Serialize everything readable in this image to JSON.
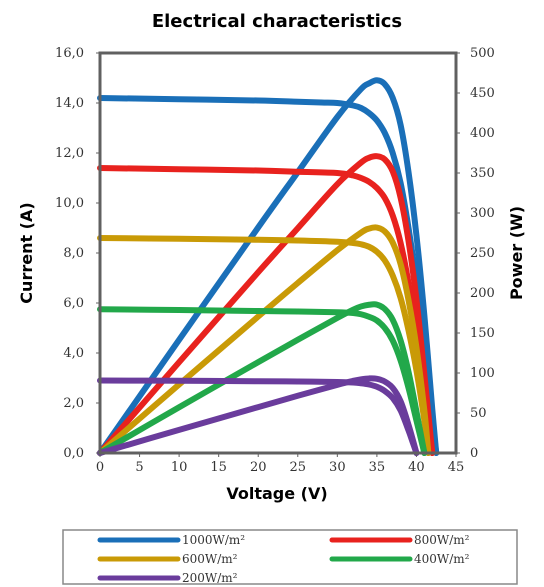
{
  "chart_data": {
    "type": "line",
    "title": "Electrical characteristics",
    "xlabel": "Voltage (V)",
    "ylabel_left": "Current (A)",
    "ylabel_right": "Power (W)",
    "xlim": [
      0,
      45
    ],
    "ylim_left": [
      0,
      16
    ],
    "ylim_right": [
      0,
      500
    ],
    "x_ticks": [
      "0",
      "5",
      "10",
      "15",
      "20",
      "25",
      "30",
      "35",
      "40",
      "45"
    ],
    "y_left_ticks": [
      "0,0",
      "2,0",
      "4,0",
      "6,0",
      "8,0",
      "10,0",
      "12,0",
      "14,0",
      "16,0"
    ],
    "y_right_ticks": [
      "0",
      "50",
      "100",
      "150",
      "200",
      "250",
      "300",
      "350",
      "400",
      "450",
      "500"
    ],
    "grid": false,
    "legend_position": "bottom",
    "series": [
      {
        "name": "1000W/m²",
        "color": "#1a6fb8",
        "iv_curve": {
          "axis": "left",
          "x": [
            0,
            10,
            20,
            25,
            28,
            30,
            32,
            33,
            34,
            35,
            36,
            37,
            38,
            39,
            40,
            41,
            42,
            42.5
          ],
          "y": [
            14.2,
            14.15,
            14.1,
            14.05,
            14.02,
            14.0,
            13.9,
            13.8,
            13.6,
            13.3,
            12.8,
            12.0,
            10.8,
            9.0,
            6.8,
            4.2,
            1.3,
            0
          ]
        },
        "power_curve": {
          "axis": "right",
          "x": [
            0,
            10,
            20,
            25,
            30,
            33,
            34,
            35,
            36,
            37,
            38,
            39,
            40,
            41,
            42,
            42.5
          ],
          "y": [
            0,
            141.5,
            282,
            351,
            420,
            455,
            462,
            466,
            461,
            444,
            410,
            351,
            272,
            172,
            55,
            0
          ]
        }
      },
      {
        "name": "800W/m²",
        "color": "#e8221e",
        "iv_curve": {
          "axis": "left",
          "x": [
            0,
            10,
            20,
            25,
            30,
            32,
            33,
            34,
            35,
            36,
            37,
            38,
            39,
            40,
            41,
            42
          ],
          "y": [
            11.4,
            11.35,
            11.3,
            11.25,
            11.2,
            11.1,
            11.0,
            10.85,
            10.6,
            10.2,
            9.5,
            8.4,
            6.8,
            4.8,
            2.4,
            0
          ]
        },
        "power_curve": {
          "axis": "right",
          "x": [
            0,
            10,
            20,
            25,
            30,
            33,
            34,
            35,
            36,
            37,
            38,
            39,
            40,
            41,
            42
          ],
          "y": [
            0,
            113.5,
            226,
            281,
            336,
            363,
            369,
            371,
            367,
            352,
            319,
            265,
            192,
            98,
            0
          ]
        }
      },
      {
        "name": "600W/m²",
        "color": "#c99a06",
        "iv_curve": {
          "axis": "left",
          "x": [
            0,
            10,
            20,
            25,
            30,
            32,
            33,
            34,
            35,
            36,
            37,
            38,
            39,
            40,
            41,
            41.5
          ],
          "y": [
            8.6,
            8.57,
            8.53,
            8.5,
            8.45,
            8.4,
            8.35,
            8.25,
            8.05,
            7.7,
            7.1,
            6.2,
            4.9,
            3.3,
            1.3,
            0
          ]
        },
        "power_curve": {
          "axis": "right",
          "x": [
            0,
            10,
            20,
            25,
            30,
            33,
            34,
            35,
            36,
            37,
            38,
            39,
            40,
            41,
            41.5
          ],
          "y": [
            0,
            85.7,
            170.6,
            212.5,
            253.5,
            275.5,
            280.5,
            281.8,
            277,
            263,
            236,
            191,
            132,
            53,
            0
          ]
        }
      },
      {
        "name": "400W/m²",
        "color": "#22a84a",
        "iv_curve": {
          "axis": "left",
          "x": [
            0,
            10,
            20,
            25,
            30,
            32,
            33,
            34,
            35,
            36,
            37,
            38,
            39,
            40,
            41
          ],
          "y": [
            5.75,
            5.72,
            5.68,
            5.66,
            5.63,
            5.6,
            5.55,
            5.45,
            5.3,
            5.0,
            4.5,
            3.7,
            2.6,
            1.3,
            0
          ]
        },
        "power_curve": {
          "axis": "right",
          "x": [
            0,
            10,
            20,
            25,
            30,
            32,
            33,
            34,
            35,
            36,
            37,
            38,
            39,
            40,
            41
          ],
          "y": [
            0,
            57.2,
            113.6,
            141.5,
            168.9,
            179.2,
            183.2,
            185.3,
            185.5,
            180,
            166.5,
            140.6,
            101.4,
            52,
            0
          ]
        }
      },
      {
        "name": "200W/m²",
        "color": "#6a3c9c",
        "iv_curve": {
          "axis": "left",
          "x": [
            0,
            10,
            20,
            25,
            30,
            32,
            33,
            34,
            35,
            36,
            37,
            38,
            39,
            39.5,
            40
          ],
          "y": [
            2.9,
            2.89,
            2.87,
            2.86,
            2.84,
            2.82,
            2.79,
            2.74,
            2.65,
            2.48,
            2.2,
            1.7,
            0.9,
            0.45,
            0
          ]
        },
        "power_curve": {
          "axis": "right",
          "x": [
            0,
            10,
            20,
            25,
            30,
            32,
            33,
            34,
            35,
            36,
            37,
            38,
            39,
            40
          ],
          "y": [
            0,
            28.9,
            57.4,
            71.5,
            85.2,
            90.2,
            92.1,
            93.2,
            92.8,
            89.3,
            81.4,
            64.6,
            35.1,
            0
          ]
        }
      }
    ]
  }
}
